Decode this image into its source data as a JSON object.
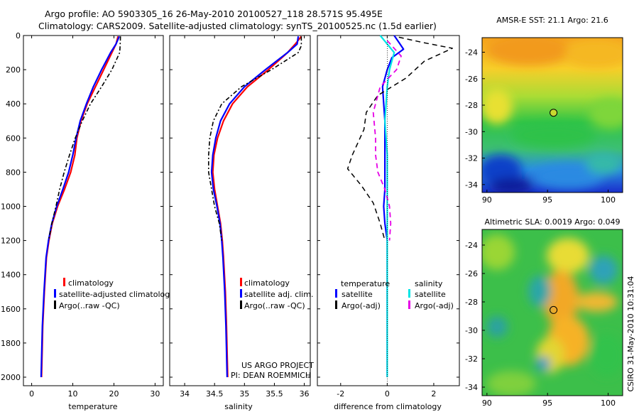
{
  "header": {
    "line1": "Argo profile: AO 5903305_16 26-May-2010 20100527_118 28.571S 95.495E",
    "line2": "Climatology: CARS2009. Satellite-adjusted climatology: synTS_20100525.nc (1.5d earlier)"
  },
  "side_text": "CSIRO 31-May-2010 10:31:04",
  "project_text": {
    "line1": "US ARGO PROJECT",
    "line2": "PI: DEAN ROEMMICH"
  },
  "colors": {
    "climatology": "#ff0000",
    "satellite": "#0000ff",
    "argo": "#000000",
    "satellite_salinity": "#00e5e5",
    "argo_salinity_adj": "#e600e6"
  },
  "chart_data": [
    {
      "type": "line",
      "name": "temperature-profile",
      "xlabel": "temperature",
      "ylabel": "",
      "xlim": [
        -2,
        32
      ],
      "ylim": [
        2050,
        0
      ],
      "xticks": [
        "0",
        "10",
        "20",
        "30"
      ],
      "xtick_values": [
        0,
        10,
        20,
        30
      ],
      "yticks": [
        "0",
        "200",
        "400",
        "600",
        "800",
        "1000",
        "1200",
        "1400",
        "1600",
        "1800",
        "2000"
      ],
      "ytick_values": [
        0,
        200,
        400,
        600,
        800,
        1000,
        1200,
        1400,
        1600,
        1800,
        2000
      ],
      "legend_labels": [
        "climatology",
        "satellite-adjusted climatology",
        "Argo(..raw -QC)"
      ],
      "series": [
        {
          "name": "climatology",
          "color": "#ff0000",
          "dash": "",
          "x": [
            21.0,
            20.5,
            19.5,
            17.5,
            15.5,
            13.5,
            12.0,
            11.0,
            10.5,
            9.5,
            8.0,
            6.3,
            5.0,
            4.2,
            3.6,
            3.1,
            2.7,
            2.4
          ],
          "y": [
            5,
            50,
            100,
            200,
            300,
            400,
            500,
            600,
            700,
            800,
            900,
            1000,
            1100,
            1200,
            1300,
            1500,
            1700,
            2000
          ]
        },
        {
          "name": "satellite-adjusted climatology",
          "color": "#0000ff",
          "dash": "",
          "x": [
            21.3,
            20.5,
            19.2,
            17.0,
            15.0,
            13.3,
            11.8,
            10.8,
            10.0,
            9.0,
            7.6,
            6.1,
            4.9,
            4.1,
            3.5,
            3.0,
            2.6,
            2.3
          ],
          "y": [
            5,
            50,
            100,
            200,
            300,
            400,
            500,
            600,
            700,
            800,
            900,
            1000,
            1100,
            1200,
            1300,
            1500,
            1700,
            2000
          ]
        },
        {
          "name": "Argo(..raw -QC)",
          "color": "#000000",
          "dash": "6,3,2,3",
          "x": [
            21.6,
            21.5,
            21.4,
            19.5,
            17.0,
            14.3,
            12.3,
            10.6,
            9.2,
            7.9,
            6.8,
            5.9,
            4.9,
            4.1
          ],
          "y": [
            5,
            60,
            100,
            200,
            300,
            400,
            500,
            600,
            700,
            800,
            900,
            1000,
            1100,
            1200
          ]
        }
      ]
    },
    {
      "type": "line",
      "name": "salinity-profile",
      "xlabel": "salinity",
      "ylabel": "",
      "xlim": [
        33.75,
        36.1
      ],
      "ylim": [
        2050,
        0
      ],
      "xticks": [
        "34",
        "34.5",
        "35",
        "35.5",
        "36"
      ],
      "xtick_values": [
        34,
        34.5,
        35,
        35.5,
        36
      ],
      "legend_labels": [
        "climatology",
        "satellite adj. clim.",
        "Argo(..raw -QC)"
      ],
      "series": [
        {
          "name": "climatology",
          "color": "#ff0000",
          "dash": "",
          "x": [
            35.95,
            35.85,
            35.72,
            35.4,
            35.05,
            34.8,
            34.65,
            34.55,
            34.49,
            34.47,
            34.5,
            34.55,
            34.6,
            34.63,
            34.65,
            34.68,
            34.7,
            34.72
          ],
          "y": [
            5,
            50,
            100,
            200,
            300,
            400,
            500,
            600,
            700,
            800,
            900,
            1000,
            1100,
            1200,
            1300,
            1500,
            1700,
            2000
          ]
        },
        {
          "name": "satellite adj. clim.",
          "color": "#0000ff",
          "dash": "",
          "x": [
            35.9,
            35.88,
            35.72,
            35.35,
            35.0,
            34.75,
            34.6,
            34.52,
            34.47,
            34.45,
            34.48,
            34.54,
            34.59,
            34.62,
            34.64,
            34.67,
            34.69,
            34.71
          ],
          "y": [
            5,
            50,
            100,
            200,
            300,
            400,
            500,
            600,
            700,
            800,
            900,
            1000,
            1100,
            1200,
            1300,
            1500,
            1700,
            2000
          ]
        },
        {
          "name": "Argo(..raw -QC)",
          "color": "#000000",
          "dash": "6,3,2,3",
          "x": [
            35.95,
            35.95,
            35.9,
            35.45,
            34.95,
            34.62,
            34.48,
            34.42,
            34.4,
            34.4,
            34.45,
            34.5,
            34.58,
            34.62
          ],
          "y": [
            5,
            60,
            100,
            200,
            300,
            400,
            500,
            600,
            700,
            800,
            900,
            1000,
            1100,
            1200
          ]
        }
      ]
    },
    {
      "type": "line",
      "name": "difference-profile",
      "xlabel": "difference from climatology",
      "ylabel": "",
      "xlim": [
        -3,
        3.1
      ],
      "ylim": [
        2050,
        0
      ],
      "xticks": [
        "-2",
        "0",
        "2"
      ],
      "xtick_values": [
        -2,
        0,
        2
      ],
      "legend_title_temperature": "temperature",
      "legend_title_salinity": "salinity",
      "legend_labels_temperature": [
        "satellite",
        "Argo(-adj)"
      ],
      "legend_labels_salinity": [
        "satellite",
        "Argo(-adj)"
      ],
      "series": [
        {
          "name": "temperature satellite",
          "color": "#0000ff",
          "dash": "",
          "width": 2.2,
          "x": [
            0.3,
            0.5,
            0.7,
            0.2,
            0.0,
            -0.2,
            -0.1,
            -0.1,
            -0.1,
            -0.1,
            -0.15,
            -0.1,
            0.0,
            0.0,
            0.0,
            0.0,
            0.0
          ],
          "y": [
            0,
            40,
            80,
            130,
            200,
            300,
            500,
            700,
            800,
            900,
            1000,
            1100,
            1200,
            1400,
            1600,
            1800,
            2000
          ]
        },
        {
          "name": "temperature Argo(-adj)",
          "color": "#000000",
          "dash": "7,5",
          "width": 1.5,
          "x": [
            0.5,
            1.5,
            2.8,
            1.6,
            0.8,
            -0.4,
            -0.9,
            -1.0,
            -1.5,
            -1.7,
            -1.1,
            -0.6,
            -0.3,
            -0.1
          ],
          "y": [
            10,
            40,
            75,
            150,
            250,
            350,
            450,
            550,
            700,
            780,
            880,
            980,
            1100,
            1200
          ]
        },
        {
          "name": "salinity satellite",
          "color": "#00e5e5",
          "dash": "",
          "width": 2.2,
          "x": [
            -0.3,
            0.0,
            0.3,
            0.1,
            0.0,
            -0.1,
            0.0,
            0.0,
            0.0,
            0.0,
            0.0,
            0.0,
            0.0
          ],
          "y": [
            0,
            50,
            100,
            200,
            300,
            500,
            700,
            900,
            1100,
            1300,
            1500,
            1800,
            2000
          ]
        },
        {
          "name": "salinity Argo(-adj)",
          "color": "#e600e6",
          "dash": "7,5",
          "width": 1.8,
          "x": [
            0.0,
            0.6,
            0.4,
            -0.3,
            -0.6,
            -0.5,
            -0.5,
            -0.4,
            -0.1,
            0.1,
            0.15,
            0.1
          ],
          "y": [
            30,
            120,
            200,
            300,
            450,
            600,
            700,
            800,
            900,
            1000,
            1100,
            1200
          ]
        },
        {
          "name": "zero-line",
          "color": "#000000",
          "dash": "1,2",
          "width": 0.8,
          "x": [
            0,
            0
          ],
          "y": [
            0,
            2050
          ]
        }
      ]
    },
    {
      "type": "heatmap",
      "name": "amsr-sst-map",
      "title": "AMSR-E SST: 21.1 Argo: 21.6",
      "xlim": [
        89.6,
        101.2
      ],
      "ylim": [
        -34.6,
        -22.9
      ],
      "xticks": [
        "90",
        "95",
        "100"
      ],
      "xtick_values": [
        90,
        95,
        100
      ],
      "yticks": [
        "-24",
        "-26",
        "-28",
        "-30",
        "-32",
        "-34"
      ],
      "ytick_values": [
        -24,
        -26,
        -28,
        -30,
        -32,
        -34
      ],
      "marker": {
        "lon": 95.495,
        "lat": -28.571
      }
    },
    {
      "type": "heatmap",
      "name": "altimetric-sla-map",
      "title": "Altimetric SLA: 0.0019 Argo: 0.049",
      "xlim": [
        89.6,
        101.2
      ],
      "ylim": [
        -34.6,
        -22.9
      ],
      "xticks": [
        "90",
        "95",
        "100"
      ],
      "xtick_values": [
        90,
        95,
        100
      ],
      "yticks": [
        "-24",
        "-26",
        "-28",
        "-30",
        "-32",
        "-34"
      ],
      "ytick_values": [
        -24,
        -26,
        -28,
        -30,
        -32,
        -34
      ],
      "marker": {
        "lon": 95.495,
        "lat": -28.571
      }
    }
  ]
}
